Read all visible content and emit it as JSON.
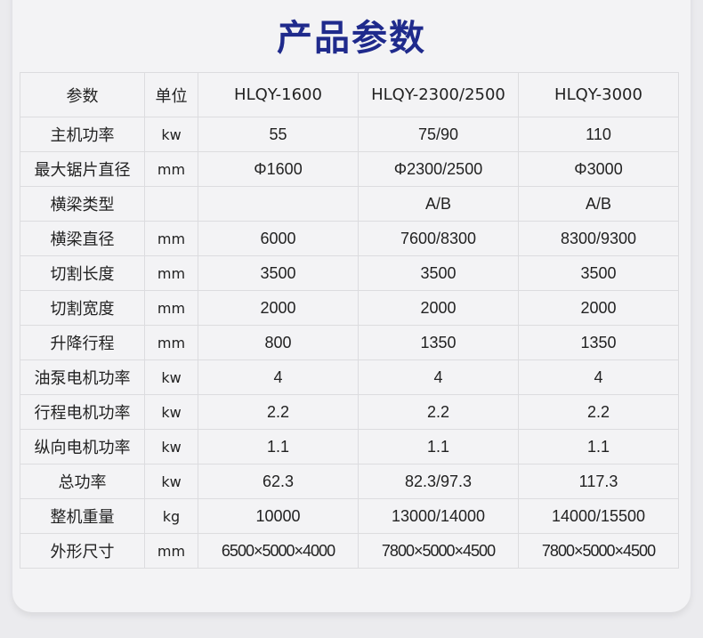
{
  "title": "产品参数",
  "header": [
    "参数",
    "单位",
    "HLQY-1600",
    "HLQY-2300/2500",
    "HLQY-3000"
  ],
  "rows": [
    [
      "主机功率",
      "kw",
      "55",
      "75/90",
      "110"
    ],
    [
      "最大锯片直径",
      "mm",
      "Φ1600",
      "Φ2300/2500",
      "Φ3000"
    ],
    [
      "横梁类型",
      "",
      "",
      "A/B",
      "A/B"
    ],
    [
      "横梁直径",
      "mm",
      "6000",
      "7600/8300",
      "8300/9300"
    ],
    [
      "切割长度",
      "mm",
      "3500",
      "3500",
      "3500"
    ],
    [
      "切割宽度",
      "mm",
      "2000",
      "2000",
      "2000"
    ],
    [
      "升降行程",
      "mm",
      "800",
      "1350",
      "1350"
    ],
    [
      "油泵电机功率",
      "kw",
      "4",
      "4",
      "4"
    ],
    [
      "行程电机功率",
      "kw",
      "2.2",
      "2.2",
      "2.2"
    ],
    [
      "纵向电机功率",
      "kw",
      "1.1",
      "1.1",
      "1.1"
    ],
    [
      "总功率",
      "kw",
      "62.3",
      "82.3/97.3",
      "117.3"
    ],
    [
      "整机重量",
      "kg",
      "10000",
      "13000/14000",
      "14000/15500"
    ],
    [
      "外形尺寸",
      "mm",
      "6500×5000×4000",
      "7800×5000×4500",
      "7800×5000×4500"
    ]
  ],
  "colors": {
    "title": "#1f2a8c",
    "border": "#dcdcdf",
    "background": "#ebebee"
  }
}
